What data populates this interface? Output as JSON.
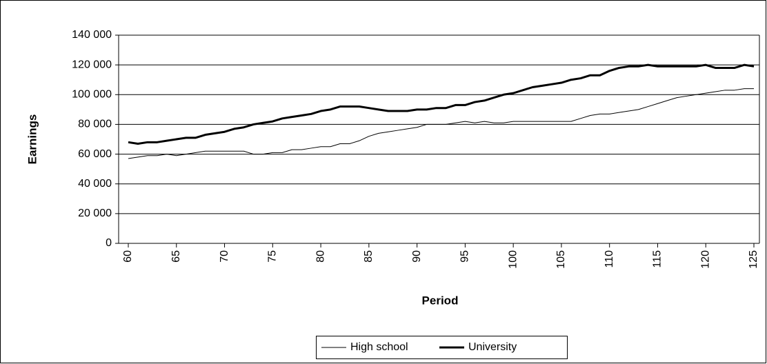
{
  "chart_data": {
    "type": "line",
    "y_label": "Earnings",
    "x_label": "Period",
    "x": [
      60,
      61,
      62,
      63,
      64,
      65,
      66,
      67,
      68,
      69,
      70,
      71,
      72,
      73,
      74,
      75,
      76,
      77,
      78,
      79,
      80,
      81,
      82,
      83,
      84,
      85,
      86,
      87,
      88,
      89,
      90,
      91,
      92,
      93,
      94,
      95,
      96,
      97,
      98,
      99,
      100,
      101,
      102,
      103,
      104,
      105,
      106,
      107,
      108,
      109,
      110,
      111,
      112,
      113,
      114,
      115,
      116,
      117,
      118,
      119,
      120,
      121,
      122,
      123,
      124,
      125
    ],
    "series": [
      {
        "name": "High school",
        "color": "#000000",
        "width": 1,
        "values": [
          57000,
          58000,
          59000,
          59000,
          60000,
          59000,
          60000,
          61000,
          62000,
          62000,
          62000,
          62000,
          62000,
          60000,
          60000,
          61000,
          61000,
          63000,
          63000,
          64000,
          65000,
          65000,
          67000,
          67000,
          69000,
          72000,
          74000,
          75000,
          76000,
          77000,
          78000,
          80000,
          80000,
          80000,
          81000,
          82000,
          81000,
          82000,
          81000,
          81000,
          82000,
          82000,
          82000,
          82000,
          82000,
          82000,
          82000,
          84000,
          86000,
          87000,
          87000,
          88000,
          89000,
          90000,
          92000,
          94000,
          96000,
          98000,
          99000,
          100000,
          101000,
          102000,
          103000,
          103000,
          104000,
          104000
        ]
      },
      {
        "name": "University",
        "color": "#000000",
        "width": 3,
        "values": [
          68000,
          67000,
          68000,
          68000,
          69000,
          70000,
          71000,
          71000,
          73000,
          74000,
          75000,
          77000,
          78000,
          80000,
          81000,
          82000,
          84000,
          85000,
          86000,
          87000,
          89000,
          90000,
          92000,
          92000,
          92000,
          91000,
          90000,
          89000,
          89000,
          89000,
          90000,
          90000,
          91000,
          91000,
          93000,
          93000,
          95000,
          96000,
          98000,
          100000,
          101000,
          103000,
          105000,
          106000,
          107000,
          108000,
          110000,
          111000,
          113000,
          113000,
          116000,
          118000,
          119000,
          119000,
          120000,
          119000,
          119000,
          119000,
          119000,
          119000,
          120000,
          118000,
          118000,
          118000,
          120000,
          119000
        ]
      }
    ],
    "xlim": [
      60,
      125
    ],
    "xticks": [
      60,
      65,
      70,
      75,
      80,
      85,
      90,
      95,
      100,
      105,
      110,
      115,
      120,
      125
    ],
    "ylim": [
      0,
      140000
    ],
    "yticks": [
      0,
      {
        "value": 20000,
        "label": "20 000"
      },
      {
        "value": 40000,
        "label": "40 000"
      },
      {
        "value": 60000,
        "label": "60 000"
      },
      {
        "value": 80000,
        "label": "80 000"
      },
      {
        "value": 100000,
        "label": "100 000"
      },
      {
        "value": 120000,
        "label": "120 000"
      },
      {
        "value": 140000,
        "label": "140 000"
      }
    ],
    "grid": true,
    "legend": "bottom"
  }
}
